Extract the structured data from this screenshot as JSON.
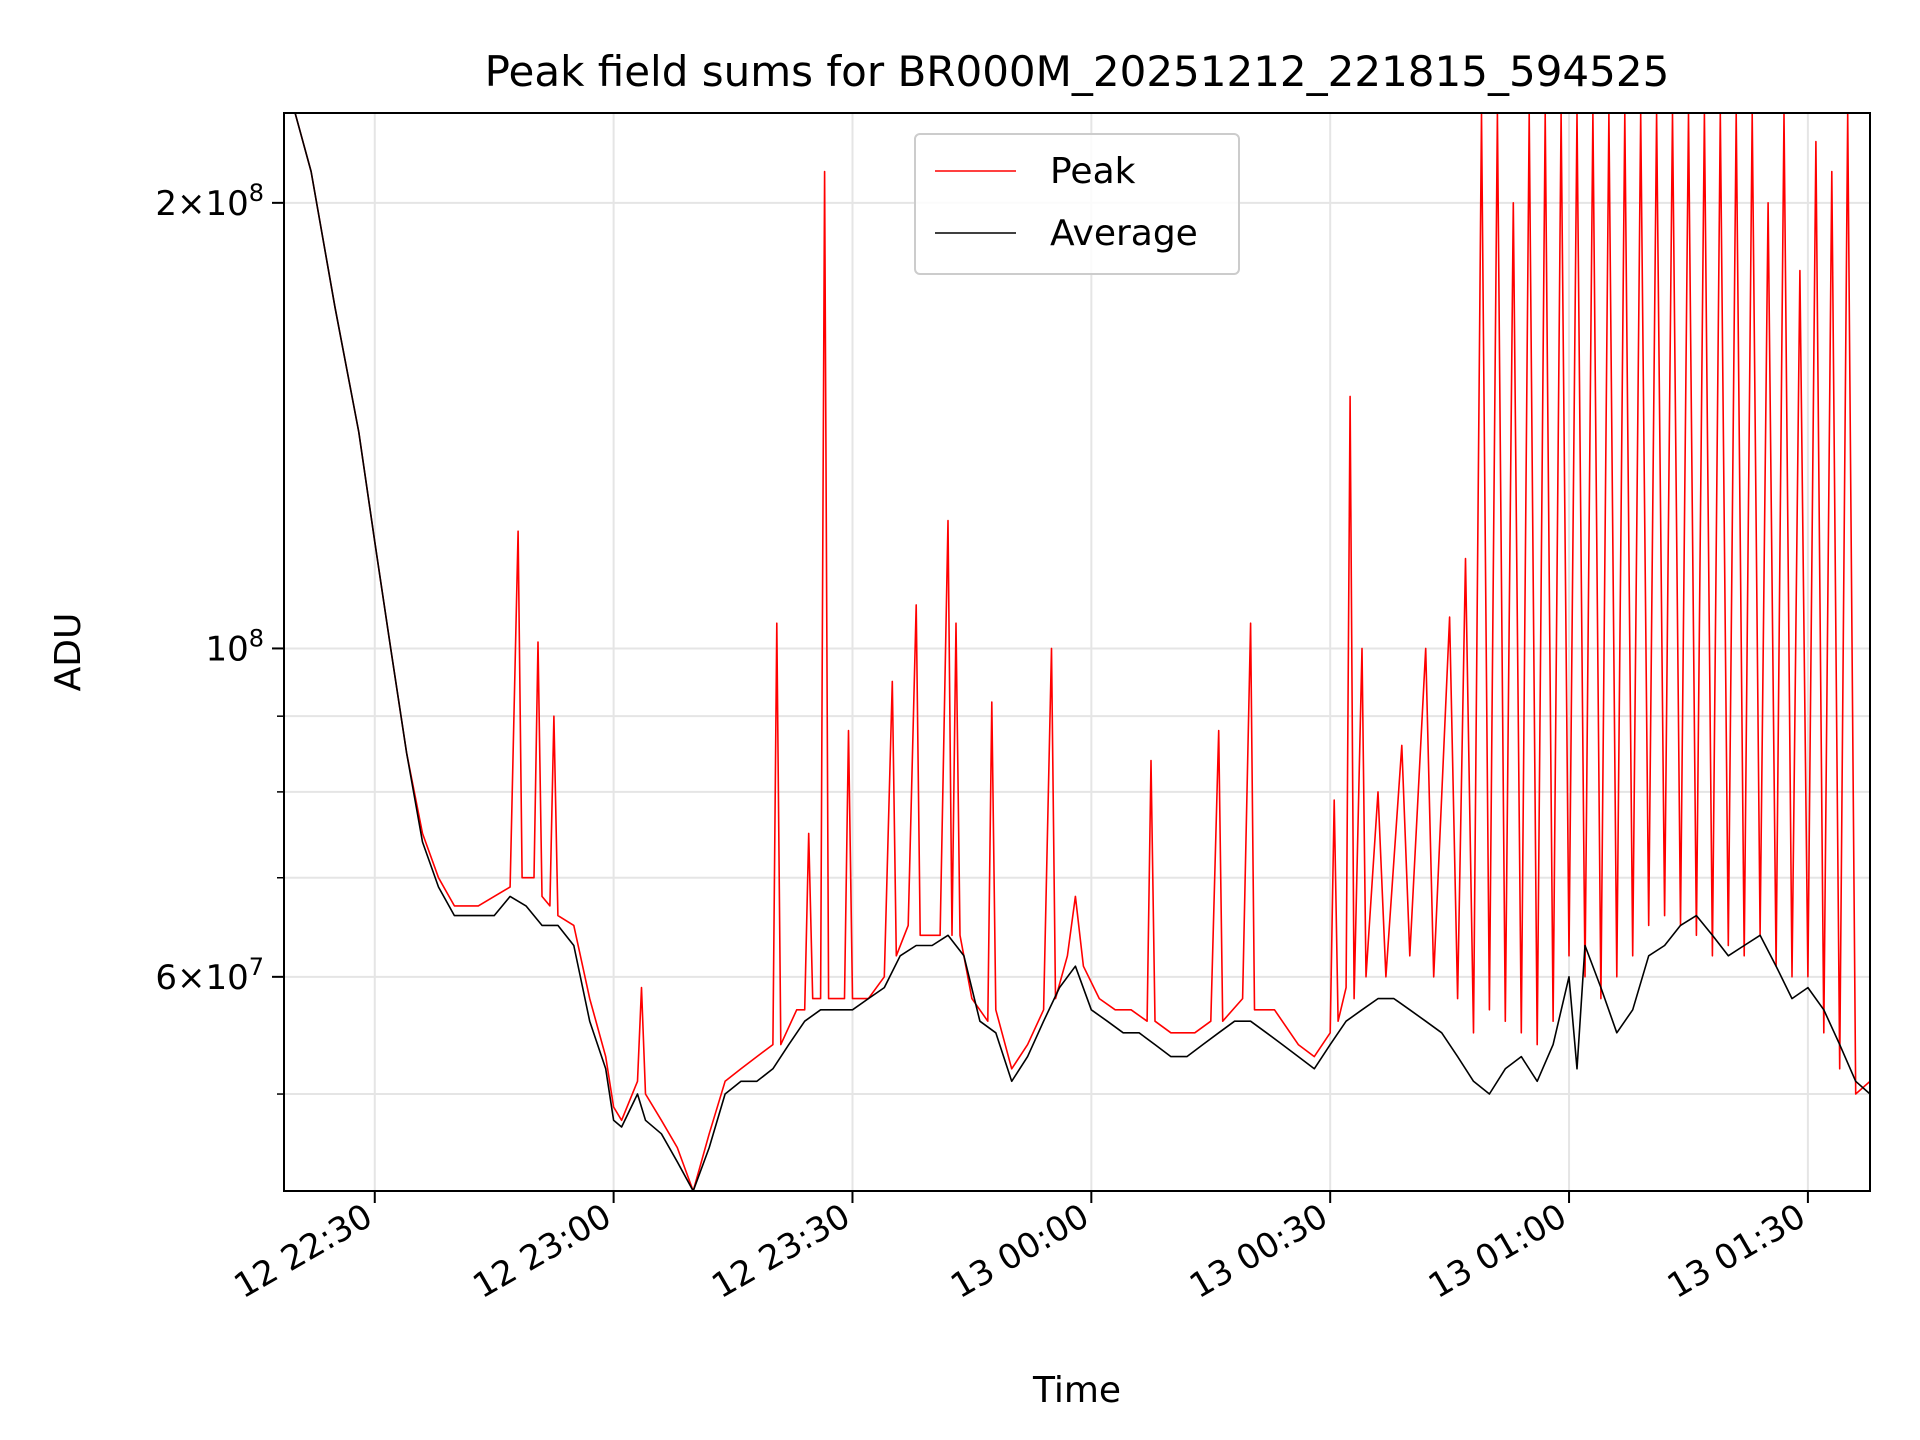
{
  "chart_data": {
    "type": "line",
    "title": "Peak field sums for BR000M_20251212_221815_594525",
    "xlabel": "Time",
    "ylabel": "ADU",
    "yscale": "log",
    "ylim": [
      43000000,
      230000000
    ],
    "xlim": [
      "12 22:18:36",
      "13 01:37:48"
    ],
    "grid": true,
    "legend_position": "upper center",
    "x_ticks": [
      "12 22:30",
      "12 23:00",
      "12 23:30",
      "13 00:00",
      "13 00:30",
      "13 01:00",
      "13 01:30"
    ],
    "y_ticks": [
      "2 × 10^8",
      "10^8",
      "6 × 10^7"
    ],
    "series": [
      {
        "name": "Peak",
        "color": "#ff0000",
        "points": [
          [
            "12 22:18:36",
            230000000
          ],
          [
            "12 22:20",
            230000000
          ],
          [
            "12 22:22",
            210000000
          ],
          [
            "12 22:25",
            170000000
          ],
          [
            "12 22:28",
            140000000
          ],
          [
            "12 22:30",
            118000000
          ],
          [
            "12 22:32",
            100000000
          ],
          [
            "12 22:34",
            85000000
          ],
          [
            "12 22:36",
            75000000
          ],
          [
            "12 22:38",
            70000000
          ],
          [
            "12 22:40",
            67000000
          ],
          [
            "12 22:43",
            67000000
          ],
          [
            "12 22:45",
            68000000
          ],
          [
            "12 22:47",
            69000000
          ],
          [
            "12 22:48",
            120000000
          ],
          [
            "12 22:48:30",
            70000000
          ],
          [
            "12 22:50",
            70000000
          ],
          [
            "12 22:50:30",
            101000000
          ],
          [
            "12 22:51",
            68000000
          ],
          [
            "12 22:52",
            67000000
          ],
          [
            "12 22:52:30",
            90000000
          ],
          [
            "12 22:53",
            66000000
          ],
          [
            "12 22:55",
            65000000
          ],
          [
            "12 22:57",
            58000000
          ],
          [
            "12 22:59",
            53000000
          ],
          [
            "12 23:00",
            49000000
          ],
          [
            "12 23:01",
            48000000
          ],
          [
            "12 23:03",
            51000000
          ],
          [
            "12 23:03:30",
            59000000
          ],
          [
            "12 23:04",
            50000000
          ],
          [
            "12 23:06",
            48000000
          ],
          [
            "12 23:08",
            46000000
          ],
          [
            "12 23:10",
            43000000
          ],
          [
            "12 23:12",
            47000000
          ],
          [
            "12 23:14",
            51000000
          ],
          [
            "12 23:16",
            52000000
          ],
          [
            "12 23:18",
            53000000
          ],
          [
            "12 23:20",
            54000000
          ],
          [
            "12 23:20:30",
            104000000
          ],
          [
            "12 23:21",
            54000000
          ],
          [
            "12 23:23",
            57000000
          ],
          [
            "12 23:24",
            57000000
          ],
          [
            "12 23:24:30",
            75000000
          ],
          [
            "12 23:25",
            58000000
          ],
          [
            "12 23:26",
            58000000
          ],
          [
            "12 23:26:30",
            210000000
          ],
          [
            "12 23:27",
            58000000
          ],
          [
            "12 23:29",
            58000000
          ],
          [
            "12 23:29:30",
            88000000
          ],
          [
            "12 23:30",
            58000000
          ],
          [
            "12 23:32",
            58000000
          ],
          [
            "12 23:34",
            60000000
          ],
          [
            "12 23:35",
            95000000
          ],
          [
            "12 23:35:30",
            62000000
          ],
          [
            "12 23:37",
            65000000
          ],
          [
            "12 23:38",
            107000000
          ],
          [
            "12 23:38:30",
            64000000
          ],
          [
            "12 23:41",
            64000000
          ],
          [
            "12 23:42",
            122000000
          ],
          [
            "12 23:42:30",
            64000000
          ],
          [
            "12 23:43",
            104000000
          ],
          [
            "12 23:43:30",
            64000000
          ],
          [
            "12 23:45",
            58000000
          ],
          [
            "12 23:47",
            56000000
          ],
          [
            "12 23:47:30",
            92000000
          ],
          [
            "12 23:48",
            57000000
          ],
          [
            "12 23:50",
            52000000
          ],
          [
            "12 23:52",
            54000000
          ],
          [
            "12 23:54",
            57000000
          ],
          [
            "12 23:55",
            100000000
          ],
          [
            "12 23:55:30",
            58000000
          ],
          [
            "12 23:57",
            62000000
          ],
          [
            "12 23:58",
            68000000
          ],
          [
            "12 23:59",
            61000000
          ],
          [
            "13 00:01",
            58000000
          ],
          [
            "13 00:03",
            57000000
          ],
          [
            "13 00:05",
            57000000
          ],
          [
            "13 00:07",
            56000000
          ],
          [
            "13 00:07:30",
            84000000
          ],
          [
            "13 00:08",
            56000000
          ],
          [
            "13 00:10",
            55000000
          ],
          [
            "13 00:13",
            55000000
          ],
          [
            "13 00:15",
            56000000
          ],
          [
            "13 00:16",
            88000000
          ],
          [
            "13 00:16:30",
            56000000
          ],
          [
            "13 00:19",
            58000000
          ],
          [
            "13 00:20",
            104000000
          ],
          [
            "13 00:20:30",
            57000000
          ],
          [
            "13 00:23",
            57000000
          ],
          [
            "13 00:26",
            54000000
          ],
          [
            "13 00:28",
            53000000
          ],
          [
            "13 00:30",
            55000000
          ],
          [
            "13 00:30:30",
            79000000
          ],
          [
            "13 00:31",
            56000000
          ],
          [
            "13 00:32",
            59000000
          ],
          [
            "13 00:32:30",
            148000000
          ],
          [
            "13 00:33",
            58000000
          ],
          [
            "13 00:34",
            100000000
          ],
          [
            "13 00:34:30",
            60000000
          ],
          [
            "13 00:36",
            80000000
          ],
          [
            "13 00:37",
            60000000
          ],
          [
            "13 00:39",
            86000000
          ],
          [
            "13 00:40",
            62000000
          ],
          [
            "13 00:42",
            100000000
          ],
          [
            "13 00:43",
            60000000
          ],
          [
            "13 00:45",
            105000000
          ],
          [
            "13 00:46",
            58000000
          ],
          [
            "13 00:47",
            115000000
          ],
          [
            "13 00:48",
            55000000
          ],
          [
            "13 00:49",
            230000000
          ],
          [
            "13 00:50",
            57000000
          ],
          [
            "13 00:51",
            230000000
          ],
          [
            "13 00:52",
            56000000
          ],
          [
            "13 00:53",
            200000000
          ],
          [
            "13 00:54",
            55000000
          ],
          [
            "13 00:55",
            230000000
          ],
          [
            "13 00:56",
            54000000
          ],
          [
            "13 00:57",
            230000000
          ],
          [
            "13 00:58",
            56000000
          ],
          [
            "13 00:59",
            230000000
          ],
          [
            "13 01:00",
            62000000
          ],
          [
            "13 01:01",
            230000000
          ],
          [
            "13 01:02",
            60000000
          ],
          [
            "13 01:03",
            230000000
          ],
          [
            "13 01:04",
            58000000
          ],
          [
            "13 01:05",
            230000000
          ],
          [
            "13 01:06",
            60000000
          ],
          [
            "13 01:07",
            230000000
          ],
          [
            "13 01:08",
            62000000
          ],
          [
            "13 01:09",
            230000000
          ],
          [
            "13 01:10",
            65000000
          ],
          [
            "13 01:11",
            230000000
          ],
          [
            "13 01:12",
            66000000
          ],
          [
            "13 01:13",
            230000000
          ],
          [
            "13 01:14",
            65000000
          ],
          [
            "13 01:15",
            230000000
          ],
          [
            "13 01:16",
            64000000
          ],
          [
            "13 01:17",
            230000000
          ],
          [
            "13 01:18",
            62000000
          ],
          [
            "13 01:19",
            230000000
          ],
          [
            "13 01:20",
            63000000
          ],
          [
            "13 01:21",
            230000000
          ],
          [
            "13 01:22",
            62000000
          ],
          [
            "13 01:23",
            230000000
          ],
          [
            "13 01:24",
            64000000
          ],
          [
            "13 01:25",
            200000000
          ],
          [
            "13 01:26",
            61000000
          ],
          [
            "13 01:27",
            230000000
          ],
          [
            "13 01:28",
            60000000
          ],
          [
            "13 01:29",
            180000000
          ],
          [
            "13 01:30",
            60000000
          ],
          [
            "13 01:31",
            220000000
          ],
          [
            "13 01:32",
            55000000
          ],
          [
            "13 01:33",
            210000000
          ],
          [
            "13 01:34",
            52000000
          ],
          [
            "13 01:35",
            230000000
          ],
          [
            "13 01:36",
            50000000
          ],
          [
            "13 01:37:48",
            51000000
          ]
        ]
      },
      {
        "name": "Average",
        "color": "#000000",
        "points": [
          [
            "12 22:18:36",
            230000000
          ],
          [
            "12 22:20",
            230000000
          ],
          [
            "12 22:22",
            210000000
          ],
          [
            "12 22:25",
            170000000
          ],
          [
            "12 22:28",
            140000000
          ],
          [
            "12 22:30",
            118000000
          ],
          [
            "12 22:32",
            100000000
          ],
          [
            "12 22:34",
            85000000
          ],
          [
            "12 22:36",
            74000000
          ],
          [
            "12 22:38",
            69000000
          ],
          [
            "12 22:40",
            66000000
          ],
          [
            "12 22:43",
            66000000
          ],
          [
            "12 22:45",
            66000000
          ],
          [
            "12 22:47",
            68000000
          ],
          [
            "12 22:49",
            67000000
          ],
          [
            "12 22:51",
            65000000
          ],
          [
            "12 22:53",
            65000000
          ],
          [
            "12 22:55",
            63000000
          ],
          [
            "12 22:57",
            56000000
          ],
          [
            "12 22:59",
            52000000
          ],
          [
            "12 23:00",
            48000000
          ],
          [
            "12 23:01",
            47500000
          ],
          [
            "12 23:03",
            50000000
          ],
          [
            "12 23:04",
            48000000
          ],
          [
            "12 23:06",
            47000000
          ],
          [
            "12 23:08",
            45000000
          ],
          [
            "12 23:10",
            43000000
          ],
          [
            "12 23:12",
            46000000
          ],
          [
            "12 23:14",
            50000000
          ],
          [
            "12 23:16",
            51000000
          ],
          [
            "12 23:18",
            51000000
          ],
          [
            "12 23:20",
            52000000
          ],
          [
            "12 23:22",
            54000000
          ],
          [
            "12 23:24",
            56000000
          ],
          [
            "12 23:26",
            57000000
          ],
          [
            "12 23:28",
            57000000
          ],
          [
            "12 23:30",
            57000000
          ],
          [
            "12 23:32",
            58000000
          ],
          [
            "12 23:34",
            59000000
          ],
          [
            "12 23:36",
            62000000
          ],
          [
            "12 23:38",
            63000000
          ],
          [
            "12 23:40",
            63000000
          ],
          [
            "12 23:42",
            64000000
          ],
          [
            "12 23:44",
            62000000
          ],
          [
            "12 23:46",
            56000000
          ],
          [
            "12 23:48",
            55000000
          ],
          [
            "12 23:50",
            51000000
          ],
          [
            "12 23:52",
            53000000
          ],
          [
            "12 23:54",
            56000000
          ],
          [
            "12 23:56",
            59000000
          ],
          [
            "12 23:58",
            61000000
          ],
          [
            "13 00:00",
            57000000
          ],
          [
            "13 00:02",
            56000000
          ],
          [
            "13 00:04",
            55000000
          ],
          [
            "13 00:06",
            55000000
          ],
          [
            "13 00:08",
            54000000
          ],
          [
            "13 00:10",
            53000000
          ],
          [
            "13 00:12",
            53000000
          ],
          [
            "13 00:14",
            54000000
          ],
          [
            "13 00:16",
            55000000
          ],
          [
            "13 00:18",
            56000000
          ],
          [
            "13 00:20",
            56000000
          ],
          [
            "13 00:22",
            55000000
          ],
          [
            "13 00:24",
            54000000
          ],
          [
            "13 00:26",
            53000000
          ],
          [
            "13 00:28",
            52000000
          ],
          [
            "13 00:30",
            54000000
          ],
          [
            "13 00:32",
            56000000
          ],
          [
            "13 00:34",
            57000000
          ],
          [
            "13 00:36",
            58000000
          ],
          [
            "13 00:38",
            58000000
          ],
          [
            "13 00:40",
            57000000
          ],
          [
            "13 00:42",
            56000000
          ],
          [
            "13 00:44",
            55000000
          ],
          [
            "13 00:46",
            53000000
          ],
          [
            "13 00:48",
            51000000
          ],
          [
            "13 00:50",
            50000000
          ],
          [
            "13 00:52",
            52000000
          ],
          [
            "13 00:54",
            53000000
          ],
          [
            "13 00:56",
            51000000
          ],
          [
            "13 00:58",
            54000000
          ],
          [
            "13 01:00",
            60000000
          ],
          [
            "13 01:01",
            52000000
          ],
          [
            "13 01:02",
            63000000
          ],
          [
            "13 01:04",
            59000000
          ],
          [
            "13 01:06",
            55000000
          ],
          [
            "13 01:08",
            57000000
          ],
          [
            "13 01:10",
            62000000
          ],
          [
            "13 01:12",
            63000000
          ],
          [
            "13 01:14",
            65000000
          ],
          [
            "13 01:16",
            66000000
          ],
          [
            "13 01:18",
            64000000
          ],
          [
            "13 01:20",
            62000000
          ],
          [
            "13 01:22",
            63000000
          ],
          [
            "13 01:24",
            64000000
          ],
          [
            "13 01:26",
            61000000
          ],
          [
            "13 01:28",
            58000000
          ],
          [
            "13 01:30",
            59000000
          ],
          [
            "13 01:32",
            57000000
          ],
          [
            "13 01:34",
            54000000
          ],
          [
            "13 01:36",
            51000000
          ],
          [
            "13 01:37:48",
            50000000
          ]
        ]
      }
    ]
  }
}
